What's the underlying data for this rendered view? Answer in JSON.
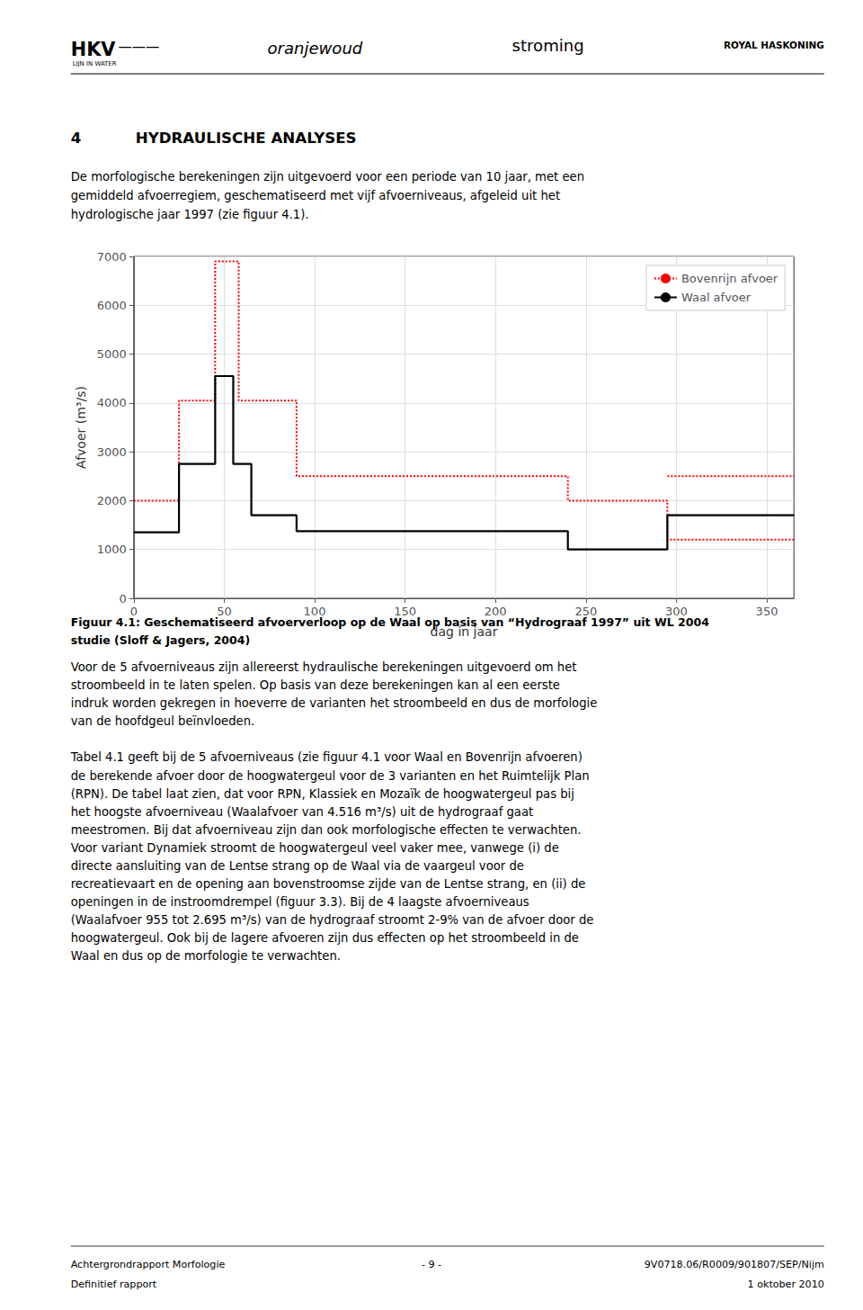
{
  "chart_data": {
    "type": "line",
    "xlabel": "dag in jaar",
    "ylabel": "Afvoer (m³/s)",
    "xlim": [
      0,
      365
    ],
    "xticks": [
      0,
      50,
      100,
      150,
      200,
      250,
      300,
      350
    ],
    "ylim": [
      0,
      7000
    ],
    "yticks": [
      0,
      1000,
      2000,
      3000,
      4000,
      5000,
      6000,
      7000
    ],
    "grid": true,
    "legend": "upper right",
    "series": [
      {
        "name": "Bovenrijn afvoer",
        "color": "#FF0000",
        "line_style": "dotted",
        "x": [
          0,
          25,
          25,
          45,
          45,
          58,
          58,
          90,
          90,
          240,
          240,
          295,
          295,
          365,
          365,
          295,
          365
        ],
        "values": [
          2000,
          2000,
          4050,
          4050,
          6900,
          6900,
          4050,
          4050,
          2500,
          2500,
          2000,
          2000,
          1200,
          1200,
          null,
          2500,
          2500
        ]
      },
      {
        "name": "Waal afvoer",
        "color": "#000000",
        "line_style": "solid",
        "x": [
          0,
          25,
          25,
          45,
          45,
          55,
          55,
          65,
          65,
          90,
          90,
          240,
          240,
          295,
          295,
          365
        ],
        "values": [
          1350,
          1350,
          2750,
          2750,
          4550,
          4550,
          2750,
          2750,
          1700,
          1700,
          1375,
          1375,
          1000,
          1000,
          1700,
          1700
        ]
      }
    ],
    "annotations": [
      "HKV",
      "———",
      "LIJN IN WATER",
      "oranjewoud",
      "stroming",
      "ROYAL HASKONING",
      "4",
      "HYDRAULISCHE ANALYSES",
      "De morfologische berekeningen zijn uitgevoerd voor een periode van 10 jaar, met een",
      "gemiddeld afvoerregiem, geschematiseerd met vijf afvoerniveaus, afgeleid uit het",
      "hydrologische jaar 1997 (zie figuur 4.1).",
      "Figuur 4.1: Geschematiseerd afvoerverloop op de Waal op basis van “Hydrograaf 1997” uit WL 2004",
      "studie (Sloff & Jagers, 2004)",
      "Voor de 5 afvoerniveaus zijn allereerst hydraulische berekeningen uitgevoerd om het",
      "stroombeeld in te laten spelen. Op basis van deze berekeningen kan al een eerste",
      "indruk worden gekregen in hoeverre de varianten het stroombeeld en dus de morfologie",
      "van de hoofdgeul beïnvloeden.",
      "Tabel 4.1 geeft bij de 5 afvoerniveaus (zie figuur 4.1 voor Waal en Bovenrijn afvoeren)",
      "de berekende afvoer door de hoogwatergeul voor de 3 varianten en het Ruimtelijk Plan",
      "(RPN). De tabel laat zien, dat voor RPN, Klassiek en Mozaïk de hoogwatergeul pas bij",
      "het hoogste afvoerniveau (Waalafvoer van 4.516 m³/s) uit de hydrograaf gaat",
      "meestromen. Bij dat afvoerniveau zijn dan ook morfologische effecten te verwachten.",
      "Voor variant Dynamiek stroomt de hoogwatergeul veel vaker mee, vanwege (i) de",
      "directe aansluiting van de Lentse strang op de Waal via de vaargeul voor de",
      "recreatievaart en de opening aan bovenstroomse zijde van de Lentse strang, en (ii) de",
      "openingen in de instroomdrempel (figuur 3.3). Bij de 4 laagste afvoerniveaus",
      "(Waalafvoer 955 tot 2.695 m³/s) van de hydrograaf stroomt 2-9% van de afvoer door de",
      "hoogwatergeul. Ook bij de lagere afvoeren zijn dus effecten op het stroombeeld in de",
      "Waal en dus op de morfologie te verwachten.",
      "Achtergrondrapport Morfologie",
      "- 9 -",
      "9V0718.06/R0009/901807/SEP/Nijm",
      "Definitief rapport",
      "1 oktober 2010"
    ]
  }
}
